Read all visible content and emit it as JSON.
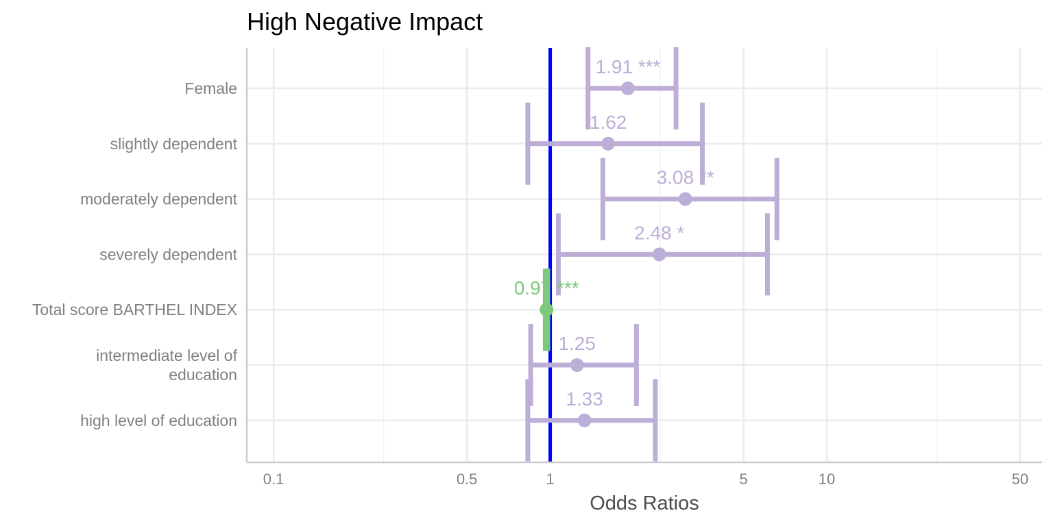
{
  "chart_data": {
    "type": "forest",
    "title": "High Negative Impact",
    "xlabel": "Odds Ratios",
    "x_scale": "log10",
    "xlim": [
      0.08,
      60
    ],
    "x_ticks": [
      0.1,
      0.5,
      1,
      5,
      10,
      50
    ],
    "x_tick_labels": [
      "0.1",
      "0.5",
      "1",
      "5",
      "10",
      "50"
    ],
    "x_minor_ticks": [
      0.25,
      2.5,
      25
    ],
    "reference_line": {
      "value": 1,
      "color": "#0000ff"
    },
    "grid": true,
    "colors": {
      "positive": "#bcaed6",
      "negative": "#7ec87e"
    },
    "terms": [
      {
        "label": [
          "Female"
        ],
        "estimate": 1.91,
        "ci_low": 1.37,
        "ci_high": 2.85,
        "label_text": "1.91 ***",
        "direction": "positive"
      },
      {
        "label": [
          "slightly dependent"
        ],
        "estimate": 1.62,
        "ci_low": 0.83,
        "ci_high": 3.55,
        "label_text": "1.62",
        "direction": "positive"
      },
      {
        "label": [
          "moderately dependent"
        ],
        "estimate": 3.08,
        "ci_low": 1.55,
        "ci_high": 6.6,
        "label_text": "3.08 **",
        "direction": "positive"
      },
      {
        "label": [
          "severely dependent"
        ],
        "estimate": 2.48,
        "ci_low": 1.07,
        "ci_high": 6.1,
        "label_text": "2.48 *",
        "direction": "positive"
      },
      {
        "label": [
          "Total score BARTHEL INDEX"
        ],
        "estimate": 0.97,
        "ci_low": 0.96,
        "ci_high": 0.98,
        "label_text": "0.97 ***",
        "direction": "negative"
      },
      {
        "label": [
          "intermediate level of",
          "education"
        ],
        "estimate": 1.25,
        "ci_low": 0.85,
        "ci_high": 2.05,
        "label_text": "1.25",
        "direction": "positive"
      },
      {
        "label": [
          "high level of education"
        ],
        "estimate": 1.33,
        "ci_low": 0.83,
        "ci_high": 2.4,
        "label_text": "1.33",
        "direction": "positive"
      }
    ]
  }
}
